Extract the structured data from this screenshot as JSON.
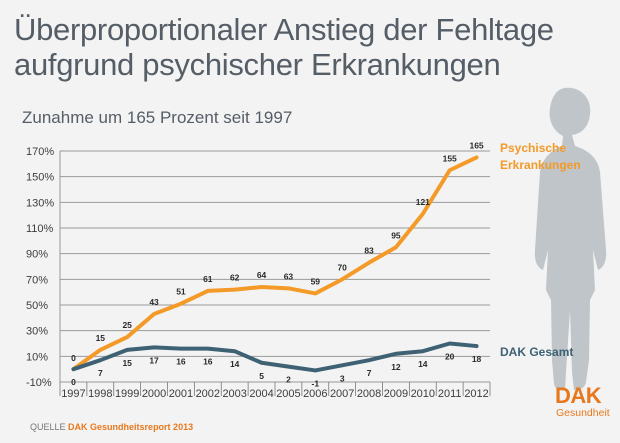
{
  "title": "Überproportionaler Anstieg der Fehltage aufgrund psychischer Erkrankungen",
  "subtitle": "Zunahme um 165 Prozent seit 1997",
  "source_prefix": "QUELLE",
  "source_name": "DAK Gesundheitsreport 2013",
  "logo": {
    "brand": "DAK",
    "sub": "Gesundheit"
  },
  "colors": {
    "psy": "#f39a28",
    "dak": "#3e6274",
    "grid": "#9a9a9a"
  },
  "chart_data": {
    "type": "line",
    "title": "Überproportionaler Anstieg der Fehltage aufgrund psychischer Erkrankungen",
    "subtitle": "Zunahme um 165 Prozent seit 1997",
    "x": [
      "1997",
      "1998",
      "1999",
      "2000",
      "2001",
      "2002",
      "2003",
      "2004",
      "2005",
      "2006",
      "2007",
      "2008",
      "2009",
      "2010",
      "2011",
      "2012"
    ],
    "y_ticks": [
      "-10%",
      "10%",
      "30%",
      "50%",
      "70%",
      "90%",
      "110%",
      "130%",
      "150%",
      "170%"
    ],
    "ylim": [
      -10,
      170
    ],
    "series": [
      {
        "name": "Psychische Erkrankungen",
        "name_lines": [
          "Psychische",
          "Erkrankungen"
        ],
        "values": [
          0,
          15,
          25,
          43,
          51,
          61,
          62,
          64,
          63,
          59,
          70,
          83,
          95,
          121,
          155,
          165
        ]
      },
      {
        "name": "DAK Gesamt",
        "name_lines": [
          "DAK Gesamt"
        ],
        "values": [
          0,
          7,
          15,
          17,
          16,
          16,
          14,
          5,
          2,
          -1,
          3,
          7,
          12,
          14,
          20,
          18
        ]
      }
    ]
  }
}
